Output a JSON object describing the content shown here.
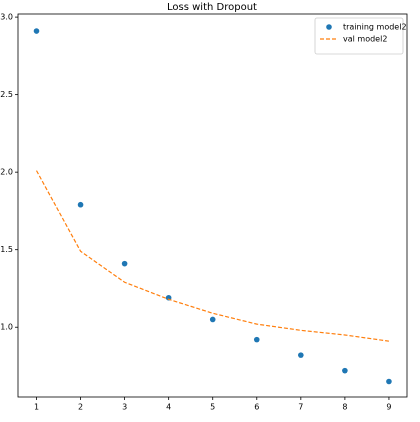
{
  "chart_data": {
    "type": "line",
    "title": "Loss with Dropout",
    "x": [
      1,
      2,
      3,
      4,
      5,
      6,
      7,
      8,
      9
    ],
    "series": [
      {
        "name": "training model2",
        "color": "#1f77b4",
        "style": "markers",
        "values": [
          2.91,
          1.79,
          1.41,
          1.19,
          1.05,
          0.92,
          0.82,
          0.72,
          0.65
        ]
      },
      {
        "name": "val model2",
        "color": "#ff7f0e",
        "style": "dashed",
        "values": [
          2.01,
          1.49,
          1.29,
          1.18,
          1.09,
          1.02,
          0.98,
          0.95,
          0.91
        ]
      }
    ],
    "xlim": [
      0.58,
      9.41
    ],
    "ylim": [
      0.55,
      3.02
    ],
    "xticks": [
      1,
      2,
      3,
      4,
      5,
      6,
      7,
      8,
      9
    ],
    "yticks": [
      {
        "value": 1,
        "label": "1.0"
      },
      1.5,
      {
        "value": 2,
        "label": "2.0"
      },
      2.5,
      {
        "value": 3,
        "label": "3.0"
      }
    ],
    "legend": "upper right"
  }
}
